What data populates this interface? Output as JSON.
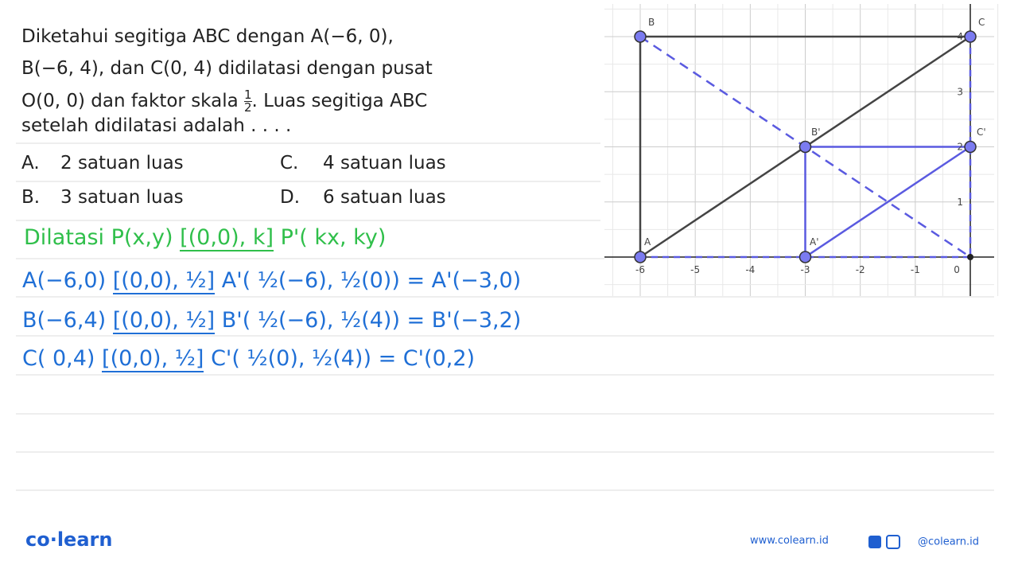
{
  "question": {
    "lines": [
      "Diketahui segitiga ABC dengan A(−6, 0),",
      "B(−6, 4), dan C(0, 4) didilatasi dengan pusat",
      "O(0, 0) dan faktor skala",
      "setelah didilatasi adalah . . . ."
    ],
    "fraction": {
      "numerator": "1",
      "denominator": "2"
    },
    "after_fraction": ". Luas segitiga ABC"
  },
  "options": [
    {
      "letter": "A.",
      "text": "2 satuan luas"
    },
    {
      "letter": "B.",
      "text": "3 satuan luas"
    },
    {
      "letter": "C.",
      "text": "4 satuan luas"
    },
    {
      "letter": "D.",
      "text": "6 satuan luas"
    }
  ],
  "handwriting": [
    {
      "start": "Dilatasi  P(x,y)",
      "center": "[(0,0), k]",
      "end": "P'( kx, ky)"
    },
    {
      "start": "A(−6,0)",
      "center": "[(0,0), ½]",
      "end": "A'( ½(−6), ½(0)) = A'(−3,0)"
    },
    {
      "start": "B(−6,4)",
      "center": "[(0,0), ½]",
      "end": "B'( ½(−6), ½(4)) = B'(−3,2)"
    },
    {
      "start": "C( 0,4)",
      "center": "[(0,0), ½]",
      "end": "C'( ½(0), ½(4)) = C'(0,2)"
    }
  ],
  "graph": {
    "x_ticks": [
      "-6",
      "-5",
      "-4",
      "-3",
      "-2",
      "-1",
      "0"
    ],
    "y_ticks": [
      "1",
      "2",
      "3",
      "4"
    ],
    "points": [
      "B",
      "C",
      "B'",
      "C'",
      "A",
      "A'"
    ]
  },
  "footer": {
    "logo": "co·learn",
    "website": "www.colearn.id",
    "social": "@colearn.id"
  }
}
